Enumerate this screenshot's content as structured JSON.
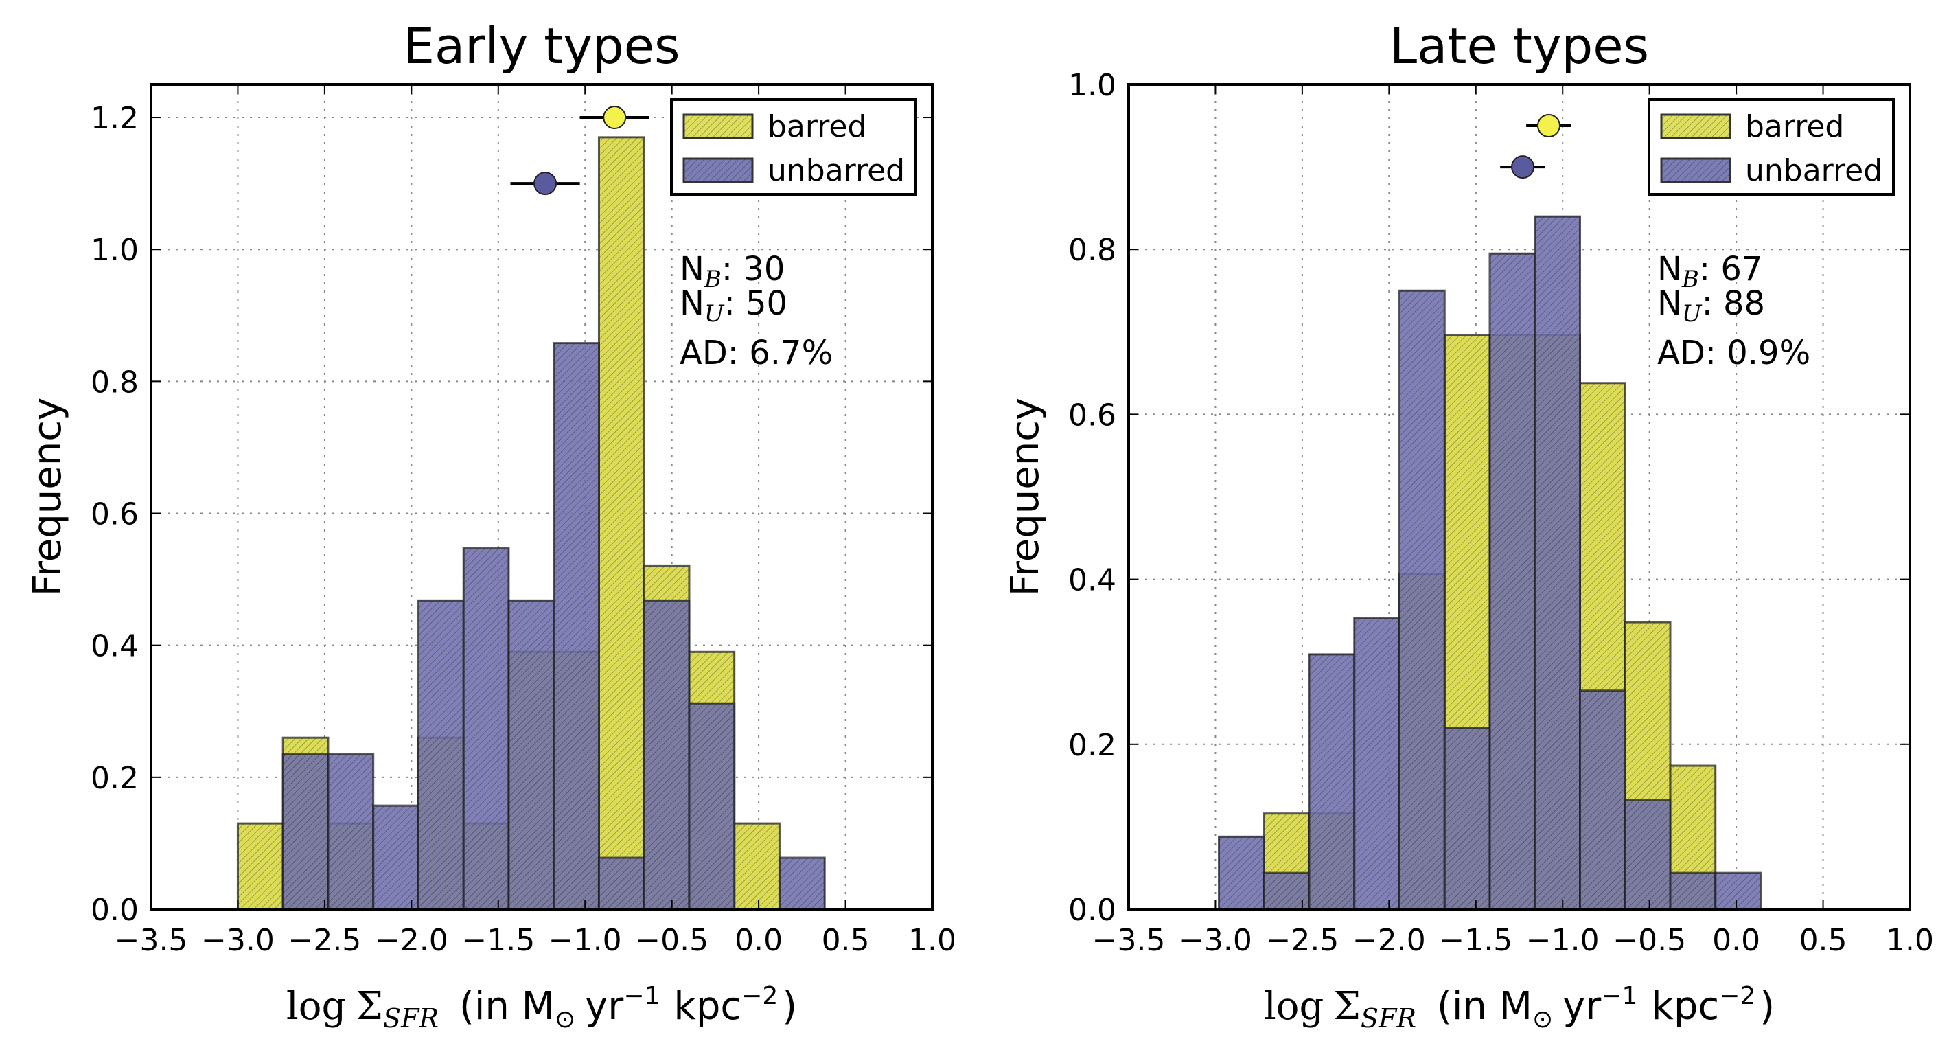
{
  "chart_data": [
    {
      "type": "bar",
      "title": "Early types",
      "ylabel": "Frequency",
      "xlabel_parts": {
        "log": "log",
        "sigma": "Σ",
        "sub": "SFR",
        "paren_open": "(in M",
        "odot": "⊙",
        "yr": "yr",
        "yr_exp": "−1",
        "kpc": "kpc",
        "kpc_exp": "−2",
        "paren_close": ")"
      },
      "xlim": [
        -3.5,
        1.0
      ],
      "ylim": [
        0.0,
        1.25
      ],
      "xticks": [
        -3.5,
        -3.0,
        -2.5,
        -2.0,
        -1.5,
        -1.0,
        -0.5,
        0.0,
        0.5,
        1.0
      ],
      "xtick_labels": [
        "−3.5",
        "−3.0",
        "−2.5",
        "−2.0",
        "−1.5",
        "−1.0",
        "−0.5",
        "0.0",
        "0.5",
        "1.0"
      ],
      "yticks": [
        0.0,
        0.2,
        0.4,
        0.6,
        0.8,
        1.0,
        1.2
      ],
      "ytick_labels": [
        "0.0",
        "0.2",
        "0.4",
        "0.6",
        "0.8",
        "1.0",
        "1.2"
      ],
      "grid": true,
      "legend_placement": "top-right",
      "bin_edges": [
        -3.0,
        -2.74,
        -2.48,
        -2.22,
        -1.96,
        -1.7,
        -1.44,
        -1.18,
        -0.92,
        -0.66,
        -0.4,
        -0.14,
        0.12,
        0.38
      ],
      "series": [
        {
          "name": "barred",
          "color": "#dada4e",
          "values": [
            0.13,
            0.26,
            0.13,
            0.0,
            0.26,
            0.13,
            0.39,
            0.39,
            1.17,
            0.52,
            0.39,
            0.13,
            0.0
          ]
        },
        {
          "name": "unbarred",
          "color": "#6f6fad",
          "values": [
            0.0,
            0.235,
            0.235,
            0.157,
            0.468,
            0.547,
            0.468,
            0.858,
            0.078,
            0.468,
            0.312,
            0.0,
            0.078
          ]
        }
      ],
      "markers": [
        {
          "series": "barred",
          "x": -0.83,
          "xerr": 0.2,
          "y": 1.2,
          "color": "#f2f24a"
        },
        {
          "series": "unbarred",
          "x": -1.23,
          "xerr": 0.2,
          "y": 1.1,
          "color": "#5a5a9e"
        }
      ],
      "annotations": {
        "nb_base": "N",
        "nb_sub": "B",
        "nb_value": ": 30",
        "nu_base": "N",
        "nu_sub": "U",
        "nu_value": ": 50",
        "ad": "AD: 6.7%"
      }
    },
    {
      "type": "bar",
      "title": "Late types",
      "ylabel": "Frequency",
      "xlabel_parts": {
        "log": "log",
        "sigma": "Σ",
        "sub": "SFR",
        "paren_open": "(in M",
        "odot": "⊙",
        "yr": "yr",
        "yr_exp": "−1",
        "kpc": "kpc",
        "kpc_exp": "−2",
        "paren_close": ")"
      },
      "xlim": [
        -3.5,
        1.0
      ],
      "ylim": [
        0.0,
        1.0
      ],
      "xticks": [
        -3.5,
        -3.0,
        -2.5,
        -2.0,
        -1.5,
        -1.0,
        -0.5,
        0.0,
        0.5,
        1.0
      ],
      "xtick_labels": [
        "−3.5",
        "−3.0",
        "−2.5",
        "−2.0",
        "−1.5",
        "−1.0",
        "−0.5",
        "0.0",
        "0.5",
        "1.0"
      ],
      "yticks": [
        0.0,
        0.2,
        0.4,
        0.6,
        0.8,
        1.0
      ],
      "ytick_labels": [
        "0.0",
        "0.2",
        "0.4",
        "0.6",
        "0.8",
        "1.0"
      ],
      "grid": true,
      "legend_placement": "top-right",
      "bin_edges": [
        -2.98,
        -2.72,
        -2.46,
        -2.2,
        -1.94,
        -1.68,
        -1.42,
        -1.16,
        -0.9,
        -0.64,
        -0.38,
        -0.12,
        0.14
      ],
      "series": [
        {
          "name": "barred",
          "color": "#dada4e",
          "values": [
            0.0,
            0.116,
            0.116,
            0.0,
            0.406,
            0.696,
            0.696,
            0.696,
            0.638,
            0.348,
            0.174,
            0.0
          ]
        },
        {
          "name": "unbarred",
          "color": "#6f6fad",
          "values": [
            0.088,
            0.044,
            0.309,
            0.353,
            0.75,
            0.22,
            0.795,
            0.84,
            0.265,
            0.132,
            0.044,
            0.044
          ]
        }
      ],
      "markers": [
        {
          "series": "barred",
          "x": -1.08,
          "xerr": 0.13,
          "y": 0.95,
          "color": "#f2f24a"
        },
        {
          "series": "unbarred",
          "x": -1.23,
          "xerr": 0.13,
          "y": 0.9,
          "color": "#5a5a9e"
        }
      ],
      "annotations": {
        "nb_base": "N",
        "nb_sub": "B",
        "nb_value": ": 67",
        "nu_base": "N",
        "nu_sub": "U",
        "nu_value": ": 88",
        "ad": "AD: 0.9%"
      }
    }
  ]
}
